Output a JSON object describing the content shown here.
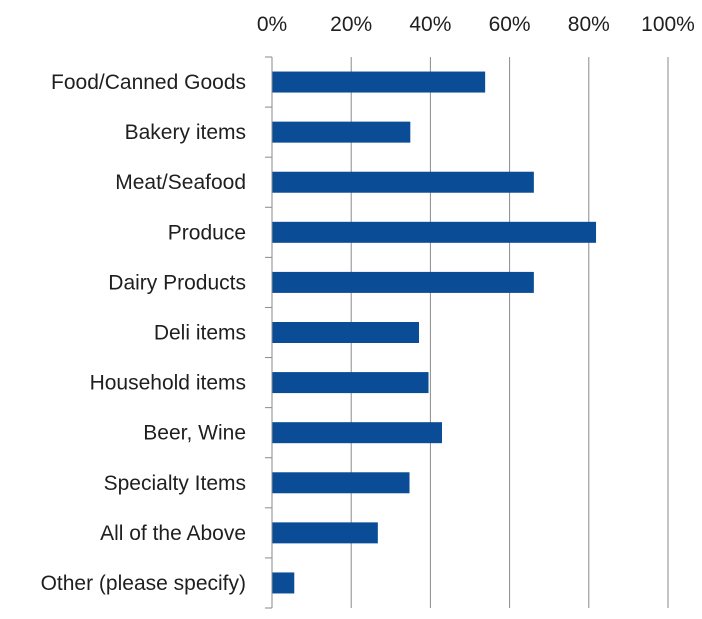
{
  "chart_data": {
    "type": "bar",
    "orientation": "horizontal",
    "title": "",
    "xlabel": "",
    "ylabel": "",
    "xlim": [
      0,
      100
    ],
    "x_ticks": [
      "0%",
      "20%",
      "40%",
      "60%",
      "80%",
      "100%"
    ],
    "x_tick_values": [
      0,
      20,
      40,
      60,
      80,
      100
    ],
    "x_axis_position": "top",
    "grid": true,
    "legend": "none",
    "categories": [
      "Food/Canned Goods",
      "Bakery items",
      "Meat/Seafood",
      "Produce",
      "Dairy Products",
      "Deli items",
      "Household items",
      "Beer, Wine",
      "Specialty Items",
      "All of the Above",
      "Other (please specify)"
    ],
    "values": [
      53.7,
      34.8,
      66.0,
      81.7,
      66.0,
      37.0,
      39.4,
      42.8,
      34.6,
      26.6,
      5.5
    ],
    "bar_color": "#0a4d96"
  }
}
